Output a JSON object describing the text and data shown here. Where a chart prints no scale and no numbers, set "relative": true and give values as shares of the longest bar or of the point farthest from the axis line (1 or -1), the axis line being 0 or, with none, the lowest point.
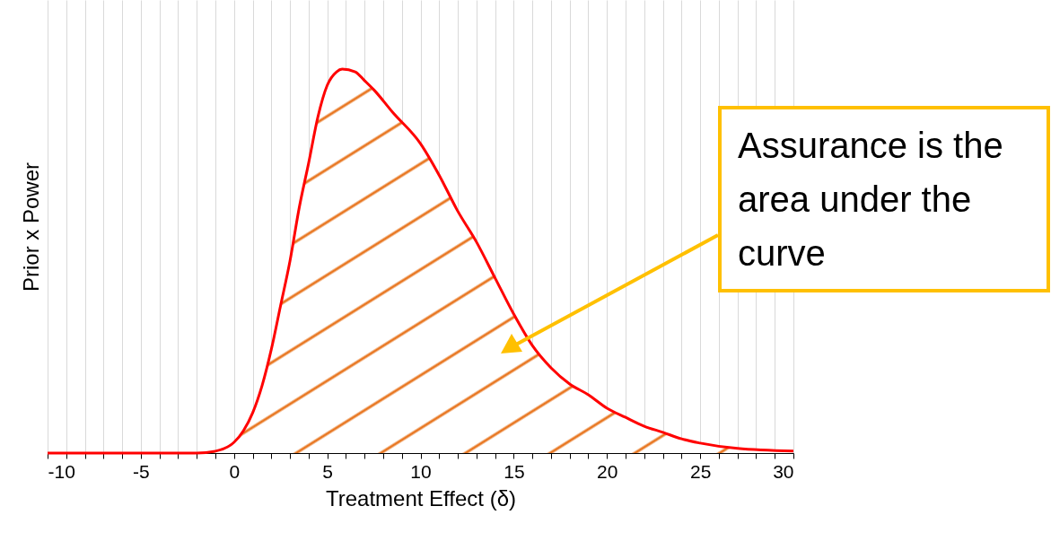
{
  "chart_data": {
    "type": "area",
    "xlabel": "Treatment Effect (δ)",
    "ylabel": "Prior x Power",
    "relative": true,
    "grid": "x",
    "xlim": [
      -10,
      30
    ],
    "xticks": [
      -10,
      {
        "value": -9,
        "label": null
      },
      {
        "value": -8,
        "label": null
      },
      {
        "value": -7,
        "label": null
      },
      {
        "value": -6,
        "label": null
      },
      -5,
      {
        "value": -4,
        "label": null
      },
      {
        "value": -3,
        "label": null
      },
      {
        "value": -2,
        "label": null
      },
      {
        "value": -1,
        "label": null
      },
      0,
      {
        "value": 1,
        "label": null
      },
      {
        "value": 2,
        "label": null
      },
      {
        "value": 3,
        "label": null
      },
      {
        "value": 4,
        "label": null
      },
      5,
      {
        "value": 6,
        "label": null
      },
      {
        "value": 7,
        "label": null
      },
      {
        "value": 8,
        "label": null
      },
      {
        "value": 9,
        "label": null
      },
      10,
      {
        "value": 11,
        "label": null
      },
      {
        "value": 12,
        "label": null
      },
      {
        "value": 13,
        "label": null
      },
      {
        "value": 14,
        "label": null
      },
      15,
      {
        "value": 16,
        "label": null
      },
      {
        "value": 17,
        "label": null
      },
      {
        "value": 18,
        "label": null
      },
      {
        "value": 19,
        "label": null
      },
      20,
      {
        "value": 21,
        "label": null
      },
      {
        "value": 22,
        "label": null
      },
      {
        "value": 23,
        "label": null
      },
      {
        "value": 24,
        "label": null
      },
      25,
      {
        "value": 26,
        "label": null
      },
      {
        "value": 27,
        "label": null
      },
      {
        "value": 28,
        "label": null
      },
      {
        "value": 29,
        "label": null
      },
      30
    ],
    "x": [
      -10,
      -5,
      -2,
      -1,
      0,
      0.5,
      1,
      1.5,
      2,
      2.5,
      3,
      3.5,
      4,
      4.5,
      5,
      5.5,
      5.8,
      6.5,
      7,
      7.5,
      8.5,
      10,
      11,
      12,
      13,
      14,
      15,
      16,
      17,
      18,
      19,
      20,
      21,
      22,
      23,
      24,
      25,
      27,
      30
    ],
    "series": [
      {
        "color": "#ff0000",
        "values": [
          0,
          0,
          0,
          0.005,
          0.028,
          0.058,
          0.105,
          0.175,
          0.27,
          0.385,
          0.5,
          0.64,
          0.755,
          0.876,
          0.958,
          0.993,
          1,
          0.993,
          0.97,
          0.946,
          0.888,
          0.806,
          0.724,
          0.63,
          0.55,
          0.456,
          0.362,
          0.28,
          0.222,
          0.18,
          0.152,
          0.117,
          0.093,
          0.07,
          0.054,
          0.037,
          0.026,
          0.012,
          0.005
        ]
      }
    ],
    "annotations": [
      "Assurance is the area under the curve"
    ]
  }
}
